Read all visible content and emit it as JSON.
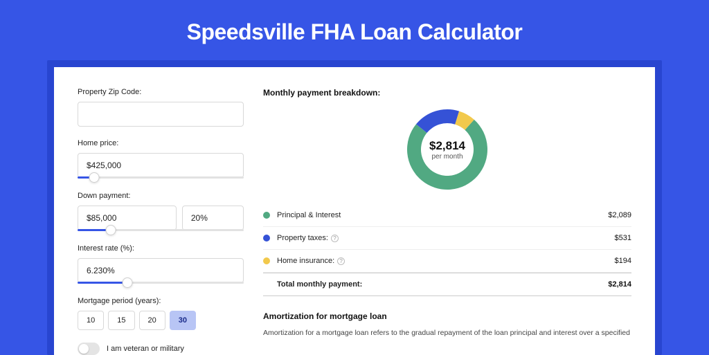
{
  "page": {
    "title": "Speedsville FHA Loan Calculator",
    "bg_color": "#3655e6",
    "shadow_color": "#2845d0"
  },
  "form": {
    "zip": {
      "label": "Property Zip Code:",
      "value": ""
    },
    "home_price": {
      "label": "Home price:",
      "value": "$425,000",
      "slider_pct": 10
    },
    "down_payment": {
      "label": "Down payment:",
      "amount": "$85,000",
      "pct": "20%",
      "slider_pct": 20
    },
    "interest_rate": {
      "label": "Interest rate (%):",
      "value": "6.230%",
      "slider_pct": 30
    },
    "mortgage_period": {
      "label": "Mortgage period (years):",
      "options": [
        "10",
        "15",
        "20",
        "30"
      ],
      "active_index": 3
    },
    "veteran": {
      "label": "I am veteran or military",
      "checked": false
    }
  },
  "breakdown": {
    "title": "Monthly payment breakdown:",
    "donut": {
      "type": "donut",
      "center_value": "$2,814",
      "center_sub": "per month",
      "radius": 58,
      "inner_radius": 38,
      "slices": [
        {
          "label": "Principal & Interest",
          "value": 2089,
          "color": "#51a982",
          "pct": 74.2,
          "amount": "$2,089",
          "has_info": false
        },
        {
          "label": "Property taxes:",
          "value": 531,
          "color": "#3552d6",
          "pct": 18.9,
          "amount": "$531",
          "has_info": true
        },
        {
          "label": "Home insurance:",
          "value": 194,
          "color": "#f2c94c",
          "pct": 6.9,
          "amount": "$194",
          "has_info": true
        }
      ],
      "start_angle_deg": -48
    },
    "total": {
      "label": "Total monthly payment:",
      "amount": "$2,814"
    }
  },
  "amortization": {
    "title": "Amortization for mortgage loan",
    "text": "Amortization for a mortgage loan refers to the gradual repayment of the loan principal and interest over a specified"
  }
}
